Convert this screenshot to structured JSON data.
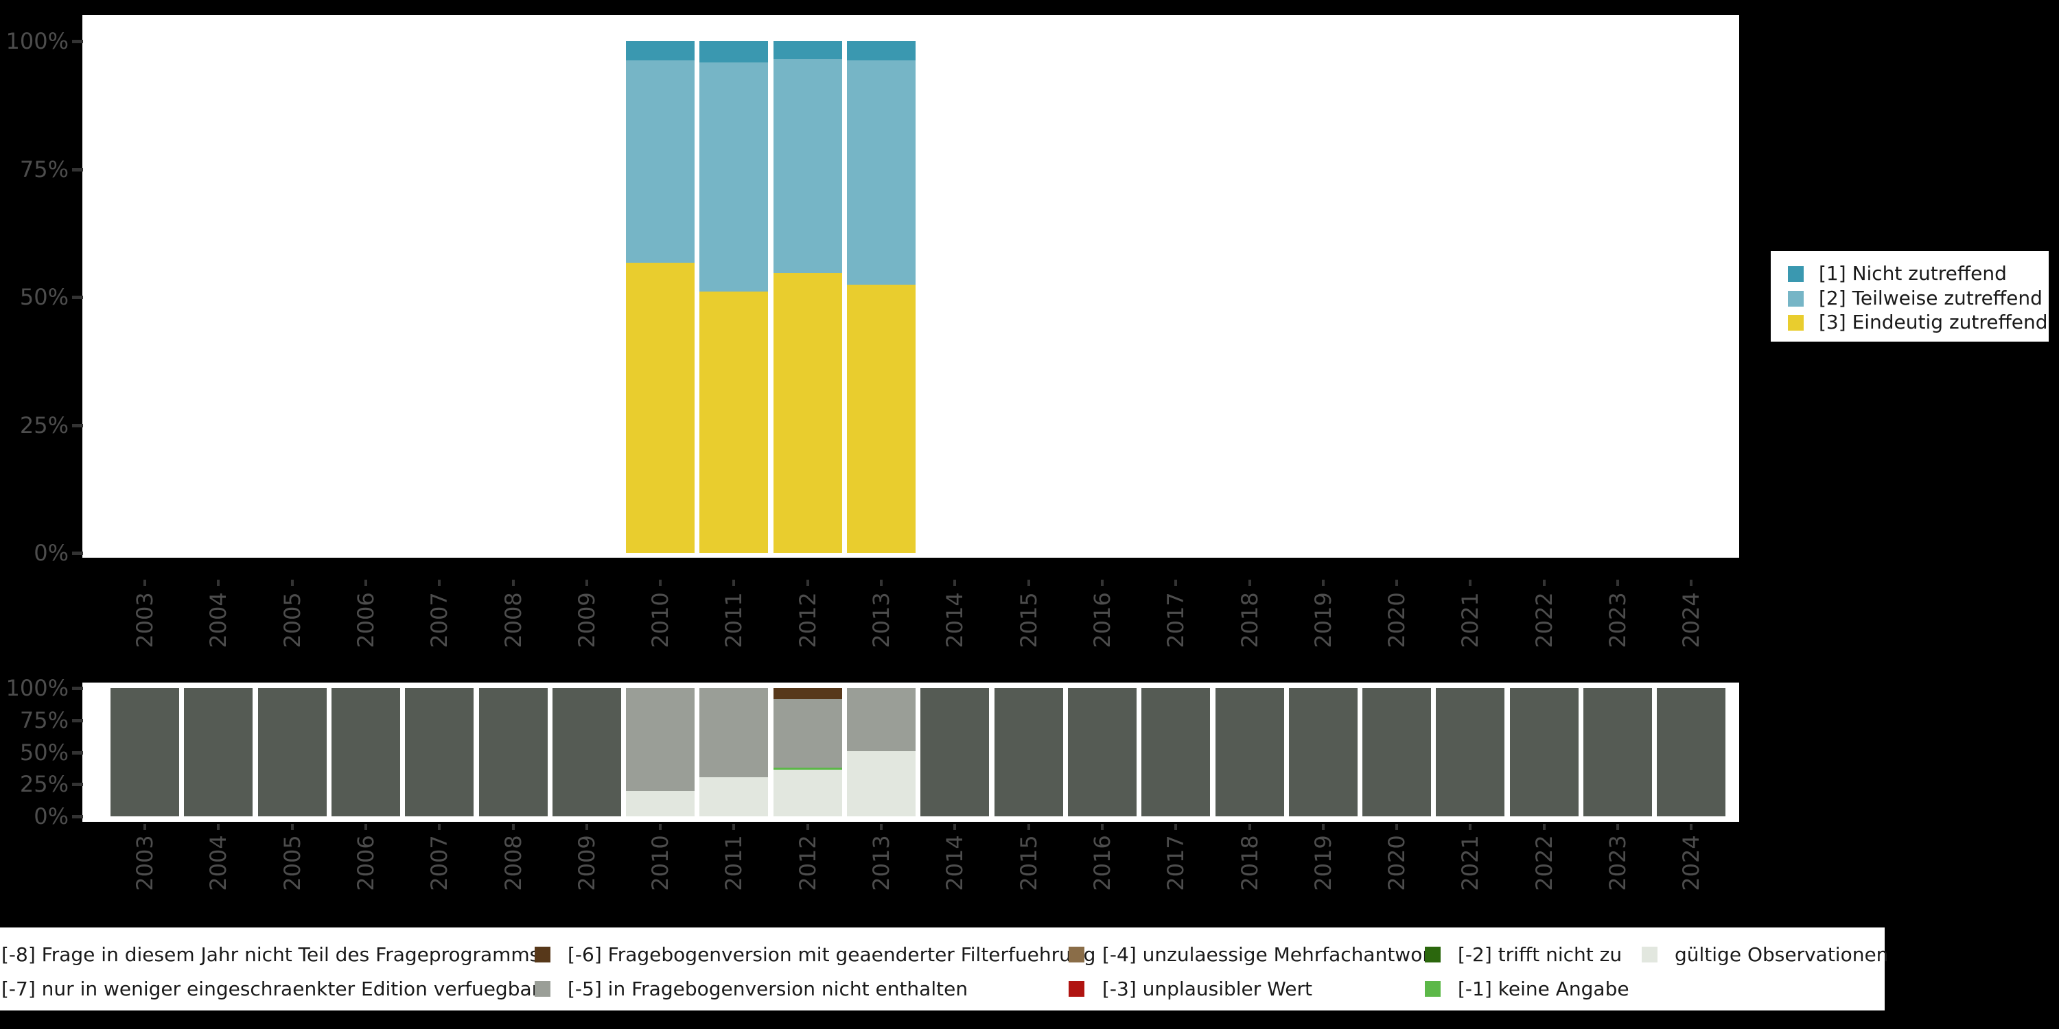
{
  "axis": {
    "years": [
      "2003",
      "2004",
      "2005",
      "2006",
      "2007",
      "2008",
      "2009",
      "2010",
      "2011",
      "2012",
      "2013",
      "2014",
      "2015",
      "2016",
      "2017",
      "2018",
      "2019",
      "2020",
      "2021",
      "2022",
      "2023",
      "2024"
    ],
    "yticks": [
      {
        "label": "0%",
        "value": 0
      },
      {
        "label": "25%",
        "value": 25
      },
      {
        "label": "50%",
        "value": 50
      },
      {
        "label": "75%",
        "value": 75
      },
      {
        "label": "100%",
        "value": 100
      }
    ]
  },
  "legend_top": {
    "items": [
      {
        "label": "[1] Nicht zutreffend",
        "color": "#3a98b0"
      },
      {
        "label": "[2] Teilweise zutreffend",
        "color": "#76b5c6"
      },
      {
        "label": "[3] Eindeutig zutreffend",
        "color": "#e9cd2e"
      }
    ]
  },
  "legend_bottom": {
    "items": [
      {
        "label": "[-8] Frage in diesem Jahr nicht Teil des Frageprogramms",
        "color": null,
        "key_visible": false,
        "row": 0,
        "col": 0
      },
      {
        "label": "[-7] nur in weniger eingeschraenkter Edition verfuegbar",
        "color": null,
        "key_visible": false,
        "row": 1,
        "col": 0
      },
      {
        "label": "[-6] Fragebogenversion mit geaenderter Filterfuehrung",
        "color": "#57381a",
        "key_visible": true,
        "row": 0,
        "col": 1
      },
      {
        "label": "[-5] in Fragebogenversion nicht enthalten",
        "color": "#9a9e97",
        "key_visible": true,
        "row": 1,
        "col": 1
      },
      {
        "label": "[-4] unzulaessige Mehrfachantwort",
        "color": "#8a6d48",
        "key_visible": true,
        "row": 0,
        "col": 2
      },
      {
        "label": "[-3] unplausibler Wert",
        "color": "#b01411",
        "key_visible": true,
        "row": 1,
        "col": 2
      },
      {
        "label": "[-2] trifft nicht zu",
        "color": "#2b670d",
        "key_visible": true,
        "row": 0,
        "col": 3
      },
      {
        "label": "[-1] keine Angabe",
        "color": "#5cb848",
        "key_visible": true,
        "row": 1,
        "col": 3
      },
      {
        "label": "gültige Observationen",
        "color": "#e2e7df",
        "key_visible": true,
        "row": 0,
        "col": 4
      }
    ]
  },
  "chart_data": [
    {
      "type": "bar",
      "stacked": true,
      "stack_order": "top-to-bottom",
      "title": "",
      "xlabel": "",
      "ylabel": "",
      "ylim": [
        0,
        100
      ],
      "grid": false,
      "legend_position": "right",
      "categories": [
        "2003",
        "2004",
        "2005",
        "2006",
        "2007",
        "2008",
        "2009",
        "2010",
        "2011",
        "2012",
        "2013",
        "2014",
        "2015",
        "2016",
        "2017",
        "2018",
        "2019",
        "2020",
        "2021",
        "2022",
        "2023",
        "2024"
      ],
      "series": [
        {
          "name": "[1] Nicht zutreffend",
          "color": "#3a98b0",
          "values": [
            0,
            0,
            0,
            0,
            0,
            0,
            0,
            3.8,
            4.2,
            3.5,
            3.8,
            0,
            0,
            0,
            0,
            0,
            0,
            0,
            0,
            0,
            0,
            0
          ]
        },
        {
          "name": "[2] Teilweise zutreffend",
          "color": "#76b5c6",
          "values": [
            0,
            0,
            0,
            0,
            0,
            0,
            0,
            39.5,
            44.7,
            41.8,
            43.8,
            0,
            0,
            0,
            0,
            0,
            0,
            0,
            0,
            0,
            0,
            0
          ]
        },
        {
          "name": "[3] Eindeutig zutreffend",
          "color": "#e9cd2e",
          "values": [
            0,
            0,
            0,
            0,
            0,
            0,
            0,
            56.7,
            51.1,
            54.7,
            52.4,
            0,
            0,
            0,
            0,
            0,
            0,
            0,
            0,
            0,
            0,
            0
          ]
        }
      ]
    },
    {
      "type": "bar",
      "stacked": true,
      "stack_order": "top-to-bottom",
      "title": "",
      "xlabel": "",
      "ylabel": "",
      "ylim": [
        0,
        100
      ],
      "grid": false,
      "legend_position": "bottom",
      "categories": [
        "2003",
        "2004",
        "2005",
        "2006",
        "2007",
        "2008",
        "2009",
        "2010",
        "2011",
        "2012",
        "2013",
        "2014",
        "2015",
        "2016",
        "2017",
        "2018",
        "2019",
        "2020",
        "2021",
        "2022",
        "2023",
        "2024"
      ],
      "series": [
        {
          "name": "[-8] Frage in diesem Jahr nicht Teil des Frageprogramms",
          "color": "#555b54",
          "values": [
            100,
            100,
            100,
            100,
            100,
            100,
            100,
            0,
            0,
            0,
            0,
            100,
            100,
            100,
            100,
            100,
            100,
            100,
            100,
            100,
            100,
            100
          ]
        },
        {
          "name": "[-6] Fragebogenversion mit geaenderter Filterfuehrung",
          "color": "#57381a",
          "values": [
            0,
            0,
            0,
            0,
            0,
            0,
            0,
            0,
            0,
            8.8,
            0,
            0,
            0,
            0,
            0,
            0,
            0,
            0,
            0,
            0,
            0,
            0
          ]
        },
        {
          "name": "[-5] in Fragebogenversion nicht enthalten",
          "color": "#9a9e97",
          "values": [
            0,
            0,
            0,
            0,
            0,
            0,
            0,
            80.4,
            69.7,
            53.0,
            49.3,
            0,
            0,
            0,
            0,
            0,
            0,
            0,
            0,
            0,
            0,
            0
          ]
        },
        {
          "name": "[-1] keine Angabe",
          "color": "#5cb848",
          "values": [
            0,
            0,
            0,
            0,
            0,
            0,
            0,
            0,
            0,
            1.7,
            0,
            0,
            0,
            0,
            0,
            0,
            0,
            0,
            0,
            0,
            0,
            0
          ]
        },
        {
          "name": "gültige Observationen",
          "color": "#e2e7df",
          "values": [
            0,
            0,
            0,
            0,
            0,
            0,
            0,
            19.6,
            30.3,
            36.5,
            50.7,
            0,
            0,
            0,
            0,
            0,
            0,
            0,
            0,
            0,
            0,
            0
          ]
        }
      ]
    }
  ]
}
